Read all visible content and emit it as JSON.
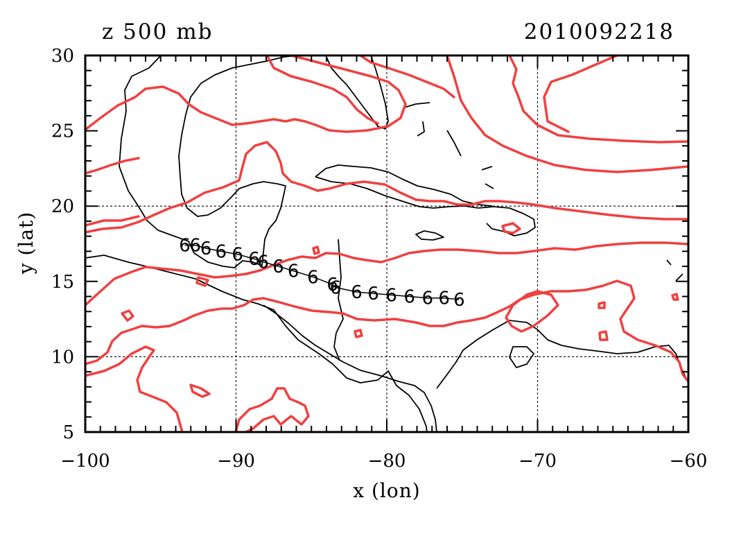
{
  "title_left": "z 500 mb",
  "title_right": "2010092218",
  "colors": {
    "contour": "#f04040",
    "coast": "#000000",
    "track": "#000000"
  },
  "icons": {
    "storm_symbol": "hurricane-symbol-icon"
  },
  "chart_data": {
    "type": "map",
    "xlabel": "x (lon)",
    "ylabel": "y (lat)",
    "xlim": [
      -100,
      -60
    ],
    "ylim": [
      5,
      30
    ],
    "xticks": [
      -100,
      -90,
      -80,
      -70,
      -60
    ],
    "yticks": [
      5,
      10,
      15,
      20,
      25,
      30
    ],
    "xtick_labels": [
      "−100",
      "−90",
      "−80",
      "−70",
      "−60"
    ],
    "ytick_labels": [
      "5",
      "10",
      "15",
      "20",
      "25",
      "30"
    ],
    "grid": true,
    "grid_lines_x": [
      -90,
      -80,
      -70
    ],
    "grid_lines_y": [
      10,
      20
    ],
    "storm_track_symbol": "6",
    "storm_track": [
      [
        -75.2,
        13.8
      ],
      [
        -76.2,
        13.9
      ],
      [
        -77.3,
        13.9
      ],
      [
        -78.5,
        14.0
      ],
      [
        -79.7,
        14.1
      ],
      [
        -80.9,
        14.2
      ],
      [
        -82.0,
        14.3
      ],
      [
        -83.4,
        14.6
      ],
      [
        -83.6,
        14.8
      ],
      [
        -84.9,
        15.3
      ],
      [
        -86.2,
        15.7
      ],
      [
        -87.2,
        16.0
      ],
      [
        -88.2,
        16.3
      ],
      [
        -88.8,
        16.5
      ],
      [
        -89.9,
        16.8
      ],
      [
        -91.0,
        17.0
      ],
      [
        -92.0,
        17.2
      ],
      [
        -92.7,
        17.4
      ],
      [
        -93.4,
        17.4
      ]
    ]
  }
}
